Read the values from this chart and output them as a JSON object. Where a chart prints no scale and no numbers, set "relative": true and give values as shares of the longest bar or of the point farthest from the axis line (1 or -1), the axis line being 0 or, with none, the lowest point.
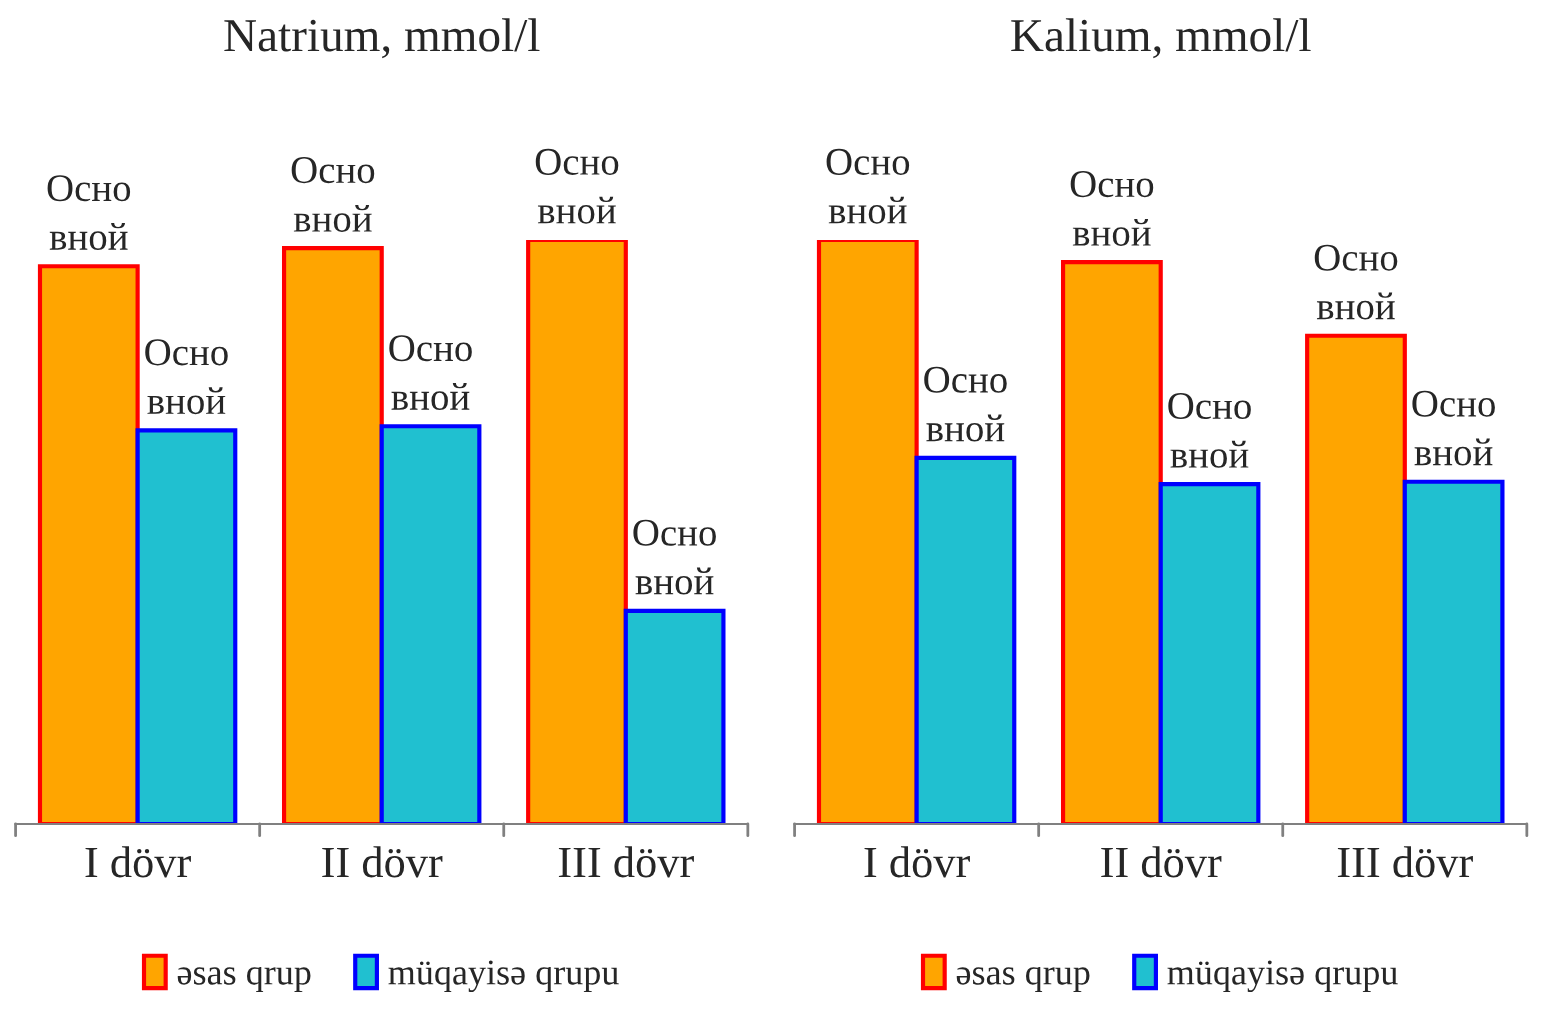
{
  "chart_data": [
    {
      "type": "bar",
      "title": "Natrium, mmol/l",
      "categories": [
        "I dövr",
        "II dövr",
        "III dövr"
      ],
      "relative": true,
      "legend": "bottom",
      "annotations": [
        "Осно\nвной",
        "Осно\nвной",
        "Осно\nвной",
        "Осно\nвной",
        "Осно\nвной",
        "Осно\nвной"
      ],
      "series": [
        {
          "name": "əsas qrup",
          "color": "#ffa500",
          "values": [
            0.955,
            0.986,
            1
          ]
        },
        {
          "name": "müqayisə qrupu",
          "color": "#20c0d0",
          "values": [
            0.674,
            0.681,
            0.365
          ]
        }
      ]
    },
    {
      "type": "bar",
      "title": "Kalium, mmol/l",
      "categories": [
        "I dövr",
        "II dövr",
        "III dövr"
      ],
      "relative": true,
      "legend": "bottom",
      "annotations": [
        "Осно\nвной",
        "Осно\nвной",
        "Осно\nвной",
        "Осно\nвной",
        "Осно\nвной",
        "Осно\nвной"
      ],
      "series": [
        {
          "name": "əsas qrup",
          "color": "#ffa500",
          "values": [
            1,
            0.962,
            0.836
          ]
        },
        {
          "name": "müqayisə qrupu",
          "color": "#20c0d0",
          "values": [
            0.627,
            0.582,
            0.586
          ]
        }
      ]
    }
  ]
}
